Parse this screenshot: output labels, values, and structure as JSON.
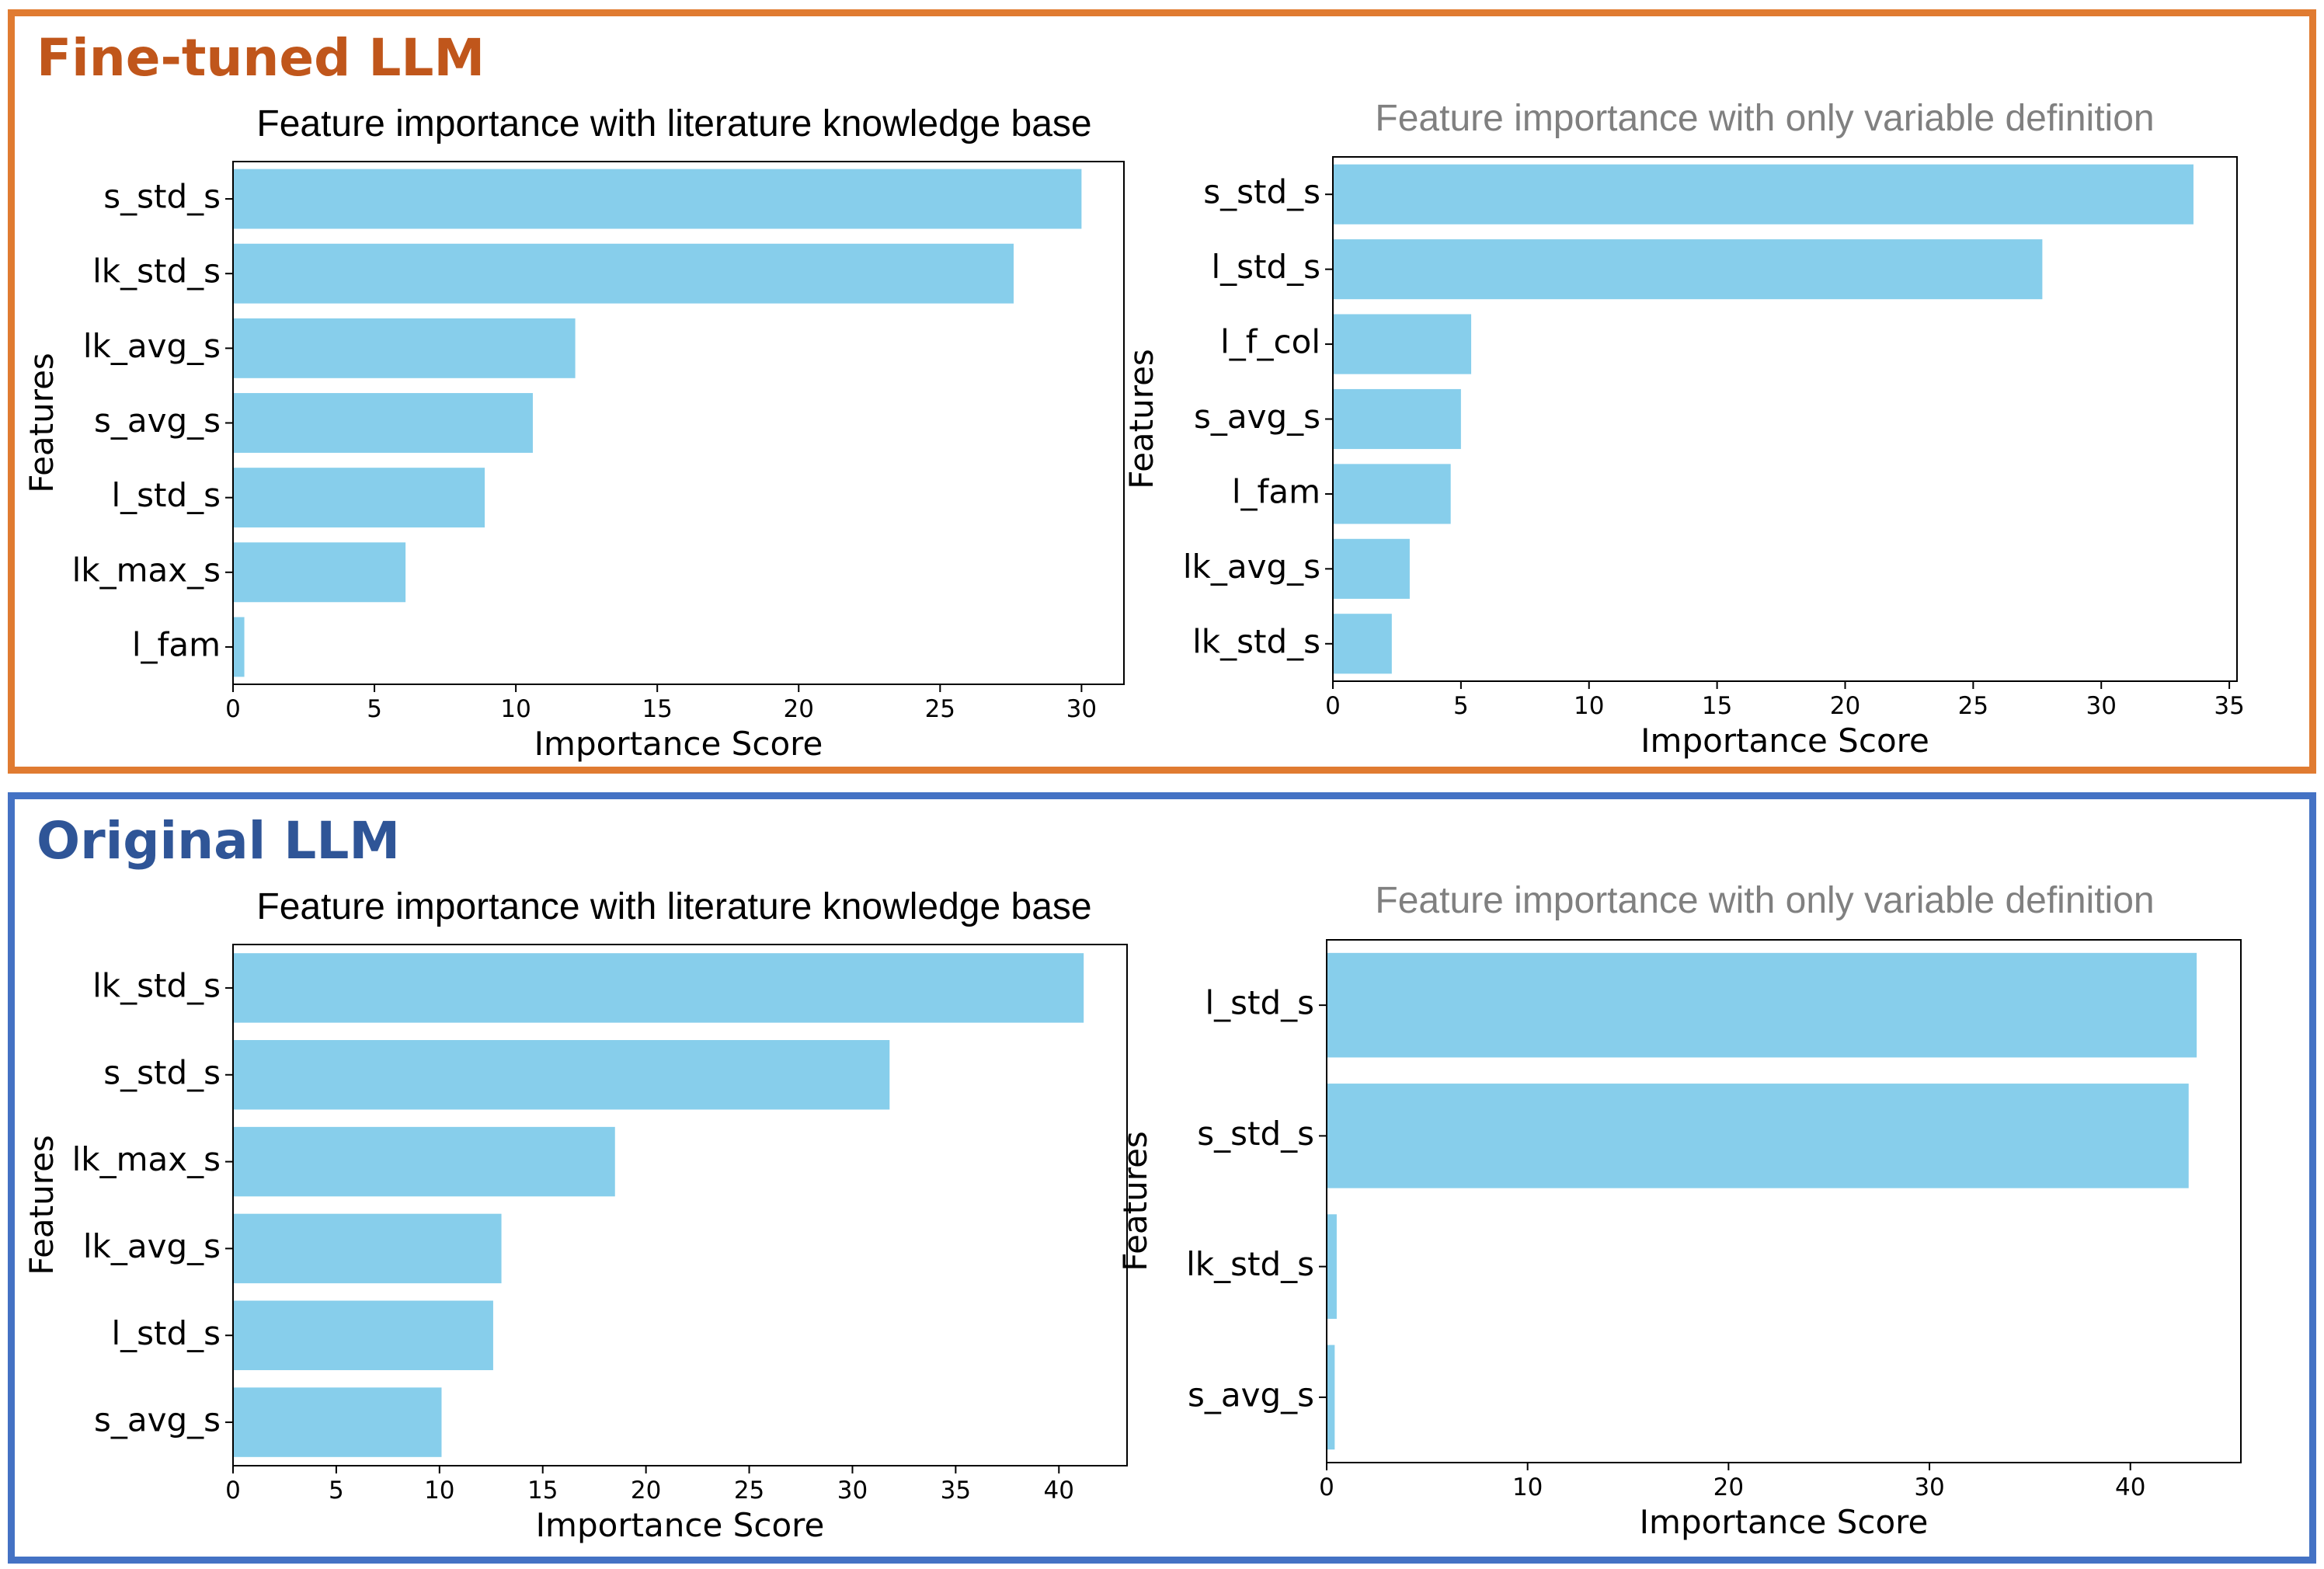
{
  "colors": {
    "fine_tuned": "#E07B31",
    "fine_tuned_title": "#C0561B",
    "original": "#4472C4",
    "original_title": "#2F5597",
    "bar": "#87CEEB",
    "title_left": "#000000",
    "title_right": "#808080"
  },
  "panels": [
    {
      "key": "top",
      "title": "Fine-tuned LLM"
    },
    {
      "key": "bottom",
      "title": "Original LLM"
    }
  ],
  "chart_data": [
    {
      "id": "ft_literature",
      "panel": "top",
      "type": "bar",
      "orientation": "horizontal",
      "title": "Feature importance with literature knowledge base",
      "xlabel": "Importance Score",
      "ylabel": "Features",
      "categories": [
        "s_std_s",
        "lk_std_s",
        "lk_avg_s",
        "s_avg_s",
        "l_std_s",
        "lk_max_s",
        "l_fam"
      ],
      "values": [
        30.0,
        27.6,
        12.1,
        10.6,
        8.9,
        6.1,
        0.4
      ],
      "xlim": [
        0,
        31.5
      ],
      "xticks": [
        0,
        5,
        10,
        15,
        20,
        25,
        30
      ]
    },
    {
      "id": "ft_variable",
      "panel": "top",
      "type": "bar",
      "orientation": "horizontal",
      "title": "Feature importance with only variable definition",
      "xlabel": "Importance Score",
      "ylabel": "Features",
      "categories": [
        "s_std_s",
        "l_std_s",
        "l_f_col",
        "s_avg_s",
        "l_fam",
        "lk_avg_s",
        "lk_std_s"
      ],
      "values": [
        33.6,
        27.7,
        5.4,
        5.0,
        4.6,
        3.0,
        2.3
      ],
      "xlim": [
        0,
        35.3
      ],
      "xticks": [
        0,
        5,
        10,
        15,
        20,
        25,
        30,
        35
      ]
    },
    {
      "id": "orig_literature",
      "panel": "bottom",
      "type": "bar",
      "orientation": "horizontal",
      "title": "Feature importance with literature knowledge base",
      "xlabel": "Importance Score",
      "ylabel": "Features",
      "categories": [
        "lk_std_s",
        "s_std_s",
        "lk_max_s",
        "lk_avg_s",
        "l_std_s",
        "s_avg_s"
      ],
      "values": [
        41.2,
        31.8,
        18.5,
        13.0,
        12.6,
        10.1
      ],
      "xlim": [
        0,
        43.3
      ],
      "xticks": [
        0,
        5,
        10,
        15,
        20,
        25,
        30,
        35,
        40
      ]
    },
    {
      "id": "orig_variable",
      "panel": "bottom",
      "type": "bar",
      "orientation": "horizontal",
      "title": "Feature importance with only variable definition",
      "xlabel": "Importance Score",
      "ylabel": "Features",
      "categories": [
        "l_std_s",
        "s_std_s",
        "lk_std_s",
        "s_avg_s"
      ],
      "values": [
        43.3,
        42.9,
        0.5,
        0.4
      ],
      "xlim": [
        0,
        45.5
      ],
      "xticks": [
        0,
        10,
        20,
        30,
        40
      ]
    }
  ]
}
